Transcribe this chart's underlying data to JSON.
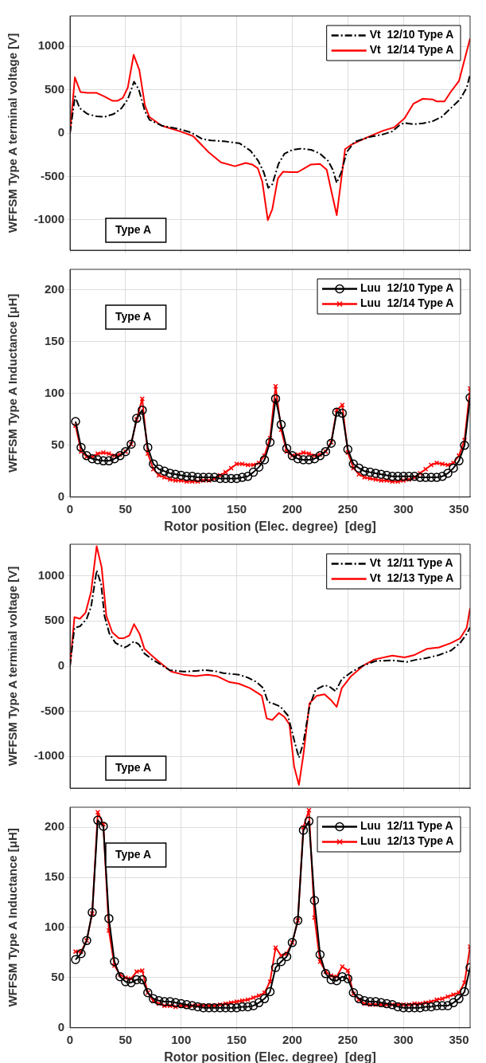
{
  "chart_data": [
    {
      "type": "line",
      "ylabel": "WFFSM Type A terminal voltage [V]",
      "xlim": [
        0,
        360
      ],
      "xticks": [
        0,
        50,
        100,
        150,
        200,
        250,
        300,
        350
      ],
      "ylim": [
        -1350,
        1350
      ],
      "yticks": [
        -1000,
        -500,
        0,
        500,
        1000
      ],
      "grid": true,
      "legend": "top right",
      "tick_labels": "y",
      "annotations": [
        "Type A"
      ],
      "series": [
        {
          "name": "Vt  12/10 Type A",
          "color": "#000000",
          "line_style": "dashed",
          "marker": "none",
          "x": [
            0,
            4.5,
            8.7,
            15.7,
            24,
            31,
            39.4,
            46.4,
            52,
            57.6,
            61.8,
            67.4,
            71.6,
            82.8,
            96.7,
            109,
            119,
            127,
            138.7,
            152.6,
            162.4,
            169.4,
            174.5,
            178.4,
            182,
            187.6,
            193,
            200,
            208.5,
            217,
            225,
            232.3,
            236.5,
            240,
            244,
            249,
            256,
            270,
            281,
            289.6,
            296.6,
            300.8,
            309,
            317.6,
            326,
            334.4,
            342.7,
            351,
            357,
            360
          ],
          "values": [
            0,
            423,
            287,
            220,
            193,
            186,
            220,
            287,
            389,
            592,
            507,
            254,
            152,
            85,
            51,
            7,
            -68,
            -85,
            -95,
            -118,
            -203,
            -321,
            -456,
            -632,
            -591,
            -355,
            -237,
            -193,
            -179,
            -193,
            -237,
            -321,
            -423,
            -575,
            -456,
            -220,
            -101,
            -44,
            -17,
            17,
            91,
            118,
            101,
            112,
            135,
            186,
            287,
            389,
            524,
            676
          ]
        },
        {
          "name": "Vt  12/14 Type A",
          "color": "#ff0000",
          "line_style": "solid",
          "marker": "none",
          "x": [
            0,
            4.4,
            9.4,
            15.6,
            24,
            31,
            38,
            43,
            47.5,
            52,
            57.3,
            62.4,
            67.4,
            71.4,
            82.5,
            99.6,
            110.7,
            124.7,
            135.8,
            148.4,
            158,
            164,
            169,
            173,
            178,
            182,
            187,
            191.6,
            198.7,
            205,
            211,
            216.8,
            225,
            231,
            235,
            240,
            244.5,
            247.5,
            253,
            267,
            281,
            292,
            301,
            309,
            317.5,
            326,
            330,
            337,
            342.5,
            350,
            360
          ],
          "values": [
            0,
            642,
            473,
            463,
            463,
            422,
            372,
            372,
            405,
            524,
            902,
            727,
            321,
            186,
            85,
            17,
            -34,
            -220,
            -338,
            -382,
            -345,
            -362,
            -406,
            -558,
            -1004,
            -879,
            -524,
            -446,
            -450,
            -450,
            -406,
            -362,
            -355,
            -422,
            -659,
            -946,
            -490,
            -186,
            -135,
            -51,
            24,
            68,
            169,
            338,
            395,
            389,
            365,
            365,
            473,
            600,
            1090
          ]
        }
      ]
    },
    {
      "type": "line",
      "ylabel": "WFFSM Type A Inductance [μH]",
      "xlabel": "Rotor position (Elec. degree)  [deg]",
      "xlim": [
        0,
        360
      ],
      "xticks": [
        0,
        50,
        100,
        150,
        200,
        250,
        300,
        350
      ],
      "ylim": [
        0,
        220
      ],
      "yticks": [
        0,
        50,
        100,
        150,
        200
      ],
      "grid": true,
      "legend": "top right",
      "annotations": [
        "Type A"
      ],
      "x": [
        5,
        10,
        15,
        20,
        25,
        30,
        35,
        40,
        45,
        50,
        55,
        60,
        65,
        70,
        75,
        80,
        85,
        90,
        95,
        100,
        105,
        110,
        115,
        120,
        125,
        130,
        135,
        140,
        145,
        150,
        155,
        160,
        165,
        170,
        175,
        180,
        185,
        190,
        195,
        200,
        205,
        210,
        215,
        220,
        225,
        230,
        235,
        240,
        245,
        250,
        255,
        260,
        265,
        270,
        275,
        280,
        285,
        290,
        295,
        300,
        305,
        310,
        315,
        320,
        325,
        330,
        335,
        340,
        345,
        350,
        355,
        360
      ],
      "series": [
        {
          "name": "Luu  12/10 Type A",
          "color": "#000000",
          "line_style": "solid",
          "marker": "circle",
          "values": [
            73,
            48,
            40,
            37,
            36,
            35,
            35,
            37,
            40,
            44,
            51,
            76,
            84,
            48,
            32,
            27,
            25,
            23,
            22,
            21,
            20,
            20,
            19,
            19,
            19,
            19,
            18,
            18,
            18,
            18,
            19,
            20,
            24,
            29,
            36,
            53,
            95,
            70,
            47,
            40,
            37,
            36,
            36,
            37,
            40,
            44,
            52,
            82,
            81,
            46,
            32,
            28,
            25,
            24,
            23,
            22,
            21,
            20,
            20,
            20,
            20,
            20,
            19,
            19,
            19,
            19,
            20,
            23,
            28,
            35,
            50,
            96
          ]
        },
        {
          "name": "Luu  12/14 Type A",
          "color": "#ff0000",
          "line_style": "solid",
          "marker": "cross",
          "values": [
            69,
            44,
            39,
            39,
            42,
            43,
            42,
            40,
            41,
            44,
            51,
            75,
            95,
            42,
            27,
            21,
            19,
            17,
            16,
            16,
            15,
            15,
            15,
            16,
            16,
            18,
            21,
            24,
            28,
            32,
            32,
            31,
            31,
            33,
            40,
            57,
            107,
            65,
            44,
            40,
            41,
            43,
            42,
            40,
            41,
            44,
            53,
            84,
            89,
            43,
            28,
            22,
            19,
            18,
            17,
            16,
            16,
            15,
            15,
            16,
            17,
            19,
            23,
            27,
            31,
            33,
            32,
            31,
            33,
            40,
            55,
            105
          ]
        }
      ]
    },
    {
      "type": "line",
      "ylabel": "WFFSM Type A terminal voltage [V]",
      "xlim": [
        0,
        360
      ],
      "xticks": [
        0,
        50,
        100,
        150,
        200,
        250,
        300,
        350
      ],
      "ylim": [
        -1350,
        1350
      ],
      "yticks": [
        -1000,
        -500,
        0,
        500,
        1000
      ],
      "grid": true,
      "legend": "top right",
      "tick_labels": "y",
      "annotations": [
        "Type A"
      ],
      "series": [
        {
          "name": "Vt  12/11 Type A",
          "color": "#000000",
          "line_style": "dashed",
          "marker": "none",
          "x": [
            0,
            4,
            9,
            15,
            19,
            24,
            28,
            31,
            35.5,
            41,
            49,
            52,
            57.6,
            62,
            67,
            74,
            81,
            89.5,
            102,
            113,
            121,
            130,
            138,
            152,
            160,
            168,
            174,
            178,
            183.6,
            189,
            196,
            203,
            206,
            210,
            215.5,
            221,
            229,
            233.5,
            239,
            244.5,
            254,
            262.6,
            275,
            290,
            303,
            312.5,
            321,
            332,
            343,
            351,
            357,
            360
          ],
          "values": [
            0,
            425,
            441,
            525,
            659,
            1060,
            910,
            558,
            358,
            257,
            207,
            224,
            274,
            241,
            140,
            74,
            23,
            -43,
            -60,
            -54,
            -43,
            -54,
            -77,
            -94,
            -127,
            -177,
            -244,
            -395,
            -418,
            -445,
            -545,
            -880,
            -1013,
            -846,
            -445,
            -261,
            -211,
            -227,
            -278,
            -144,
            -60,
            0,
            57,
            64,
            47,
            74,
            90,
            124,
            174,
            257,
            358,
            430
          ]
        },
        {
          "name": "Vt  12/13 Type A",
          "color": "#ff0000",
          "line_style": "solid",
          "marker": "none",
          "x": [
            0,
            4,
            9,
            14,
            19,
            24,
            28.5,
            32.7,
            38,
            44,
            48,
            53.5,
            57.6,
            62.6,
            67,
            73,
            81,
            91,
            102,
            113,
            124,
            132,
            143.5,
            152,
            162,
            168.5,
            172.6,
            177,
            182,
            188,
            193,
            197.5,
            201.7,
            206,
            210,
            215.5,
            222,
            229,
            235,
            240,
            244.5,
            253,
            264,
            273.7,
            290,
            301,
            310,
            321,
            332,
            343,
            351,
            357,
            360
          ],
          "values": [
            0,
            542,
            525,
            592,
            826,
            1328,
            1093,
            558,
            375,
            308,
            308,
            341,
            465,
            358,
            191,
            124,
            40,
            -60,
            -94,
            -110,
            -94,
            -110,
            -177,
            -194,
            -244,
            -294,
            -328,
            -579,
            -595,
            -518,
            -562,
            -645,
            -1114,
            -1314,
            -980,
            -411,
            -328,
            -311,
            -378,
            -451,
            -244,
            -110,
            7,
            74,
            117,
            97,
            124,
            191,
            207,
            257,
            308,
            425,
            642
          ]
        }
      ]
    },
    {
      "type": "line",
      "ylabel": "WFFSM Type A Inductance [μH]",
      "xlabel": "Rotor position (Elec. degree)  [deg]",
      "xlim": [
        0,
        360
      ],
      "xticks": [
        0,
        50,
        100,
        150,
        200,
        250,
        300,
        350
      ],
      "ylim": [
        0,
        220
      ],
      "yticks": [
        0,
        50,
        100,
        150,
        200
      ],
      "grid": true,
      "legend": "top right",
      "annotations": [
        "Type A"
      ],
      "x": [
        5,
        10,
        15,
        20,
        25,
        30,
        35,
        40,
        45,
        50,
        55,
        60,
        65,
        70,
        75,
        80,
        85,
        90,
        95,
        100,
        105,
        110,
        115,
        120,
        125,
        130,
        135,
        140,
        145,
        150,
        155,
        160,
        165,
        170,
        175,
        180,
        185,
        190,
        195,
        200,
        205,
        210,
        215,
        220,
        225,
        230,
        235,
        240,
        245,
        250,
        255,
        260,
        265,
        270,
        275,
        280,
        285,
        290,
        295,
        300,
        305,
        310,
        315,
        320,
        325,
        330,
        335,
        340,
        345,
        350,
        355,
        360
      ],
      "series": [
        {
          "name": "Luu  12/11 Type A",
          "color": "#000000",
          "line_style": "solid",
          "marker": "circle",
          "values": [
            68,
            74,
            87,
            115,
            207,
            201,
            109,
            66,
            51,
            46,
            45,
            48,
            48,
            35,
            29,
            27,
            26,
            26,
            25,
            24,
            23,
            22,
            21,
            20,
            20,
            20,
            20,
            20,
            20,
            20,
            21,
            21,
            22,
            25,
            29,
            36,
            60,
            66,
            71,
            85,
            107,
            197,
            206,
            127,
            73,
            54,
            48,
            47,
            51,
            49,
            35,
            29,
            27,
            26,
            26,
            25,
            24,
            23,
            21,
            20,
            20,
            20,
            20,
            21,
            21,
            22,
            22,
            22,
            25,
            29,
            36,
            60
          ]
        },
        {
          "name": "Luu  12/13 Type A",
          "color": "#ff0000",
          "line_style": "solid",
          "marker": "cross",
          "values": [
            76,
            76,
            87,
            114,
            215,
            203,
            97,
            62,
            53,
            50,
            49,
            56,
            57,
            35,
            27,
            24,
            22,
            22,
            21,
            22,
            22,
            22,
            22,
            22,
            22,
            22,
            23,
            24,
            25,
            26,
            27,
            28,
            30,
            32,
            35,
            46,
            80,
            72,
            74,
            85,
            107,
            200,
            217,
            110,
            66,
            56,
            52,
            51,
            61,
            57,
            34,
            28,
            24,
            23,
            23,
            23,
            23,
            23,
            23,
            23,
            23,
            24,
            24,
            25,
            26,
            28,
            29,
            31,
            33,
            35,
            45,
            81
          ]
        }
      ]
    }
  ]
}
